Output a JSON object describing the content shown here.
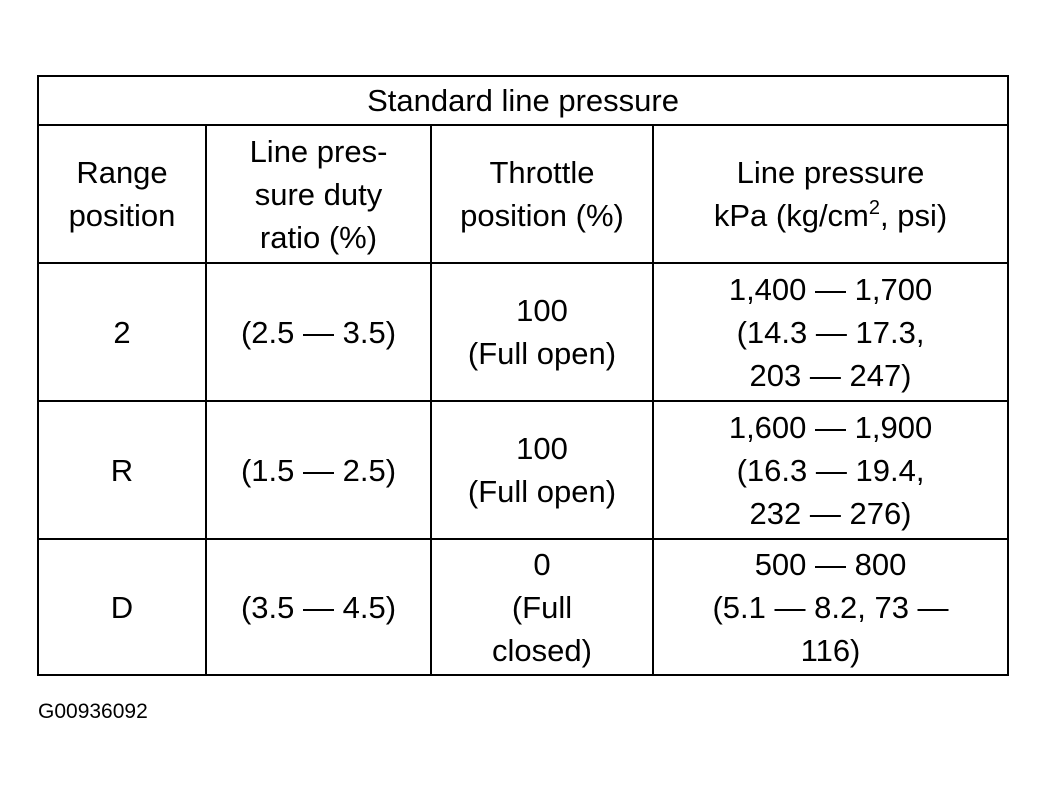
{
  "table": {
    "title": "Standard line pressure",
    "headers": {
      "range": [
        "Range",
        "position"
      ],
      "duty": [
        "Line pres-",
        "sure duty",
        "ratio (%)"
      ],
      "throttle": [
        "Throttle",
        "position (%)"
      ],
      "pressure": {
        "line1": "Line pressure",
        "line2_before_sup": "kPa (kg/cm",
        "line2_sup": "2",
        "line2_after_sup": ", psi)"
      }
    },
    "rows": [
      {
        "range": "2",
        "duty": "(2.5 — 3.5)",
        "throttle": [
          "100",
          "(Full open)"
        ],
        "pressure": [
          "1,400 — 1,700",
          "(14.3 — 17.3,",
          "203 — 247)"
        ]
      },
      {
        "range": "R",
        "duty": "(1.5 — 2.5)",
        "throttle": [
          "100",
          "(Full open)"
        ],
        "pressure": [
          "1,600 — 1,900",
          "(16.3 — 19.4,",
          "232 — 276)"
        ]
      },
      {
        "range": "D",
        "duty": "(3.5 — 4.5)",
        "throttle": [
          "0",
          "(Full",
          "closed)"
        ],
        "pressure": [
          "500 — 800",
          "(5.1 — 8.2, 73 —",
          "116)"
        ]
      }
    ]
  },
  "figure_id": "G00936092"
}
